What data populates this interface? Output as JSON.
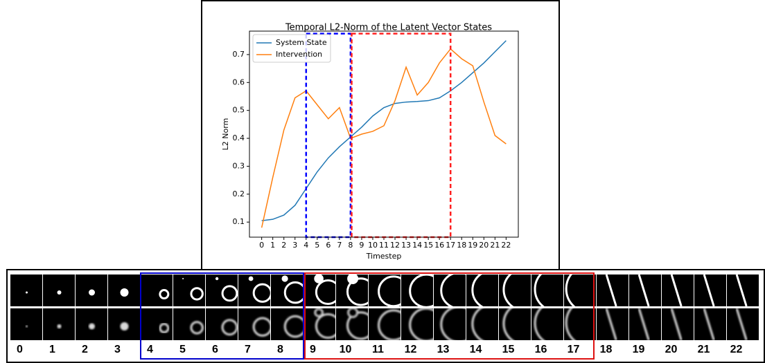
{
  "chart_data": {
    "type": "line",
    "title": "Temporal L2-Norm of the Latent Vector States",
    "xlabel": "Timestep",
    "ylabel": "L2 Norm",
    "x": [
      0,
      1,
      2,
      3,
      4,
      5,
      6,
      7,
      8,
      9,
      10,
      11,
      12,
      13,
      14,
      15,
      16,
      17,
      18,
      19,
      20,
      21,
      22
    ],
    "series": [
      {
        "name": "System State",
        "color": "#1f77b4",
        "values": [
          0.105,
          0.11,
          0.125,
          0.16,
          0.22,
          0.28,
          0.33,
          0.37,
          0.405,
          0.44,
          0.48,
          0.51,
          0.525,
          0.53,
          0.532,
          0.535,
          0.545,
          0.57,
          0.6,
          0.635,
          0.67,
          0.71,
          0.75
        ]
      },
      {
        "name": "Intervention",
        "color": "#ff7f0e",
        "values": [
          0.08,
          0.26,
          0.43,
          0.545,
          0.57,
          0.52,
          0.47,
          0.51,
          0.4,
          0.415,
          0.425,
          0.445,
          0.535,
          0.655,
          0.555,
          0.6,
          0.67,
          0.72,
          0.685,
          0.66,
          0.53,
          0.41,
          0.38
        ]
      }
    ],
    "xlim": [
      -1.1,
      23.1
    ],
    "xticks": [
      0,
      1,
      2,
      3,
      4,
      5,
      6,
      7,
      8,
      9,
      10,
      11,
      12,
      13,
      14,
      15,
      16,
      17,
      18,
      19,
      20,
      21,
      22
    ],
    "ylim": [
      0.046,
      0.784
    ],
    "yticks": [
      0.1,
      0.2,
      0.3,
      0.4,
      0.5,
      0.6,
      0.7
    ],
    "legend": "upper left",
    "regions": [
      {
        "x0": 4,
        "x1": 8,
        "y1": 0.775,
        "color": "#0000ff"
      },
      {
        "x0": 8.1,
        "x1": 17,
        "y1": 0.775,
        "color": "#ff2020"
      }
    ]
  },
  "strip": {
    "labels": [
      "0",
      "1",
      "2",
      "3",
      "4",
      "5",
      "6",
      "7",
      "8",
      "9",
      "10",
      "11",
      "12",
      "13",
      "14",
      "15",
      "16",
      "17",
      "18",
      "19",
      "20",
      "21",
      "22"
    ]
  }
}
